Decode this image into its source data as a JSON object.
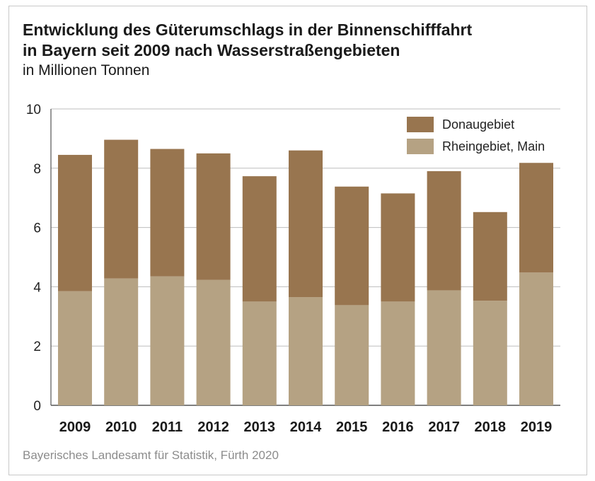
{
  "chart_data": {
    "type": "bar",
    "stacked": true,
    "title": "Entwicklung des Güterumschlags in der Binnenschifffahrt in Bayern seit 2009 nach Wasserstraßengebieten",
    "title_lines": [
      "Entwicklung des Güterumschlags in der Binnenschifffahrt",
      "in Bayern seit 2009 nach Wasserstraßengebieten"
    ],
    "subtitle": "in Millionen Tonnen",
    "source": "Bayerisches Landesamt für Statistik, Fürth 2020",
    "xlabel": "",
    "ylabel": "",
    "ylim": [
      0,
      10
    ],
    "yticks": [
      0,
      2,
      4,
      6,
      8,
      10
    ],
    "grid": true,
    "legend_position": "top-right",
    "categories": [
      "2009",
      "2010",
      "2011",
      "2012",
      "2013",
      "2014",
      "2015",
      "2016",
      "2017",
      "2018",
      "2019"
    ],
    "series": [
      {
        "name": "Rheingebiet, Main",
        "color": "#b5a283",
        "values": [
          3.85,
          4.28,
          4.35,
          4.23,
          3.5,
          3.65,
          3.38,
          3.5,
          3.88,
          3.53,
          4.48
        ]
      },
      {
        "name": "Donaugebiet",
        "color": "#98754f",
        "values": [
          4.6,
          4.68,
          4.3,
          4.27,
          4.23,
          4.95,
          4.0,
          3.65,
          4.02,
          2.99,
          3.7
        ]
      }
    ]
  }
}
